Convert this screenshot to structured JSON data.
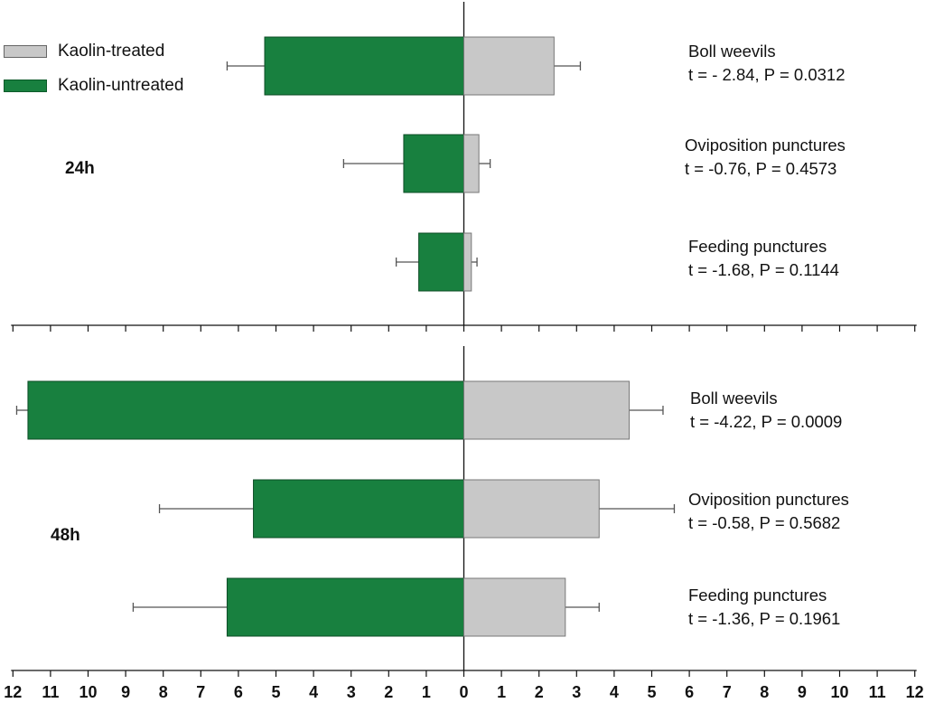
{
  "legend": {
    "treated_label": "Kaolin-treated",
    "untreated_label": "Kaolin-untreated"
  },
  "colors": {
    "treated": "#c8c8c8",
    "untreated": "#18803f",
    "axis": "#111111",
    "error": "#555555"
  },
  "chart_data": [
    {
      "type": "bar",
      "orientation": "horizontal-diverging",
      "panel": "24h",
      "categories": [
        "Boll weevils",
        "Oviposition punctures",
        "Feeding punctures"
      ],
      "series": [
        {
          "name": "Kaolin-treated",
          "values": [
            2.4,
            0.4,
            0.2
          ],
          "errors": [
            0.7,
            0.3,
            0.15
          ]
        },
        {
          "name": "Kaolin-untreated",
          "values": [
            5.3,
            1.6,
            1.2
          ],
          "errors": [
            1.0,
            1.6,
            0.6
          ]
        }
      ],
      "stats": [
        "t = - 2.84, P = 0.0312",
        "t = -0.76, P = 0.4573",
        "t = -1.68, P = 0.1144"
      ],
      "xlim": [
        -12,
        12
      ]
    },
    {
      "type": "bar",
      "orientation": "horizontal-diverging",
      "panel": "48h",
      "categories": [
        "Boll weevils",
        "Oviposition punctures",
        "Feeding punctures"
      ],
      "series": [
        {
          "name": "Kaolin-treated",
          "values": [
            4.4,
            3.6,
            2.7
          ],
          "errors": [
            0.9,
            2.0,
            0.9
          ]
        },
        {
          "name": "Kaolin-untreated",
          "values": [
            11.6,
            5.6,
            6.3
          ],
          "errors": [
            0.3,
            2.5,
            2.5
          ]
        }
      ],
      "stats": [
        "t = -4.22, P = 0.0009",
        "t = -0.58, P = 0.5682",
        "t = -1.36, P = 0.1961"
      ],
      "xlim": [
        -12,
        12
      ]
    }
  ],
  "axis": {
    "tick_labels": [
      "12",
      "11",
      "10",
      "9",
      "8",
      "7",
      "6",
      "5",
      "4",
      "3",
      "2",
      "1",
      "0",
      "1",
      "2",
      "3",
      "4",
      "5",
      "6",
      "7",
      "8",
      "9",
      "10",
      "11",
      "12"
    ]
  }
}
